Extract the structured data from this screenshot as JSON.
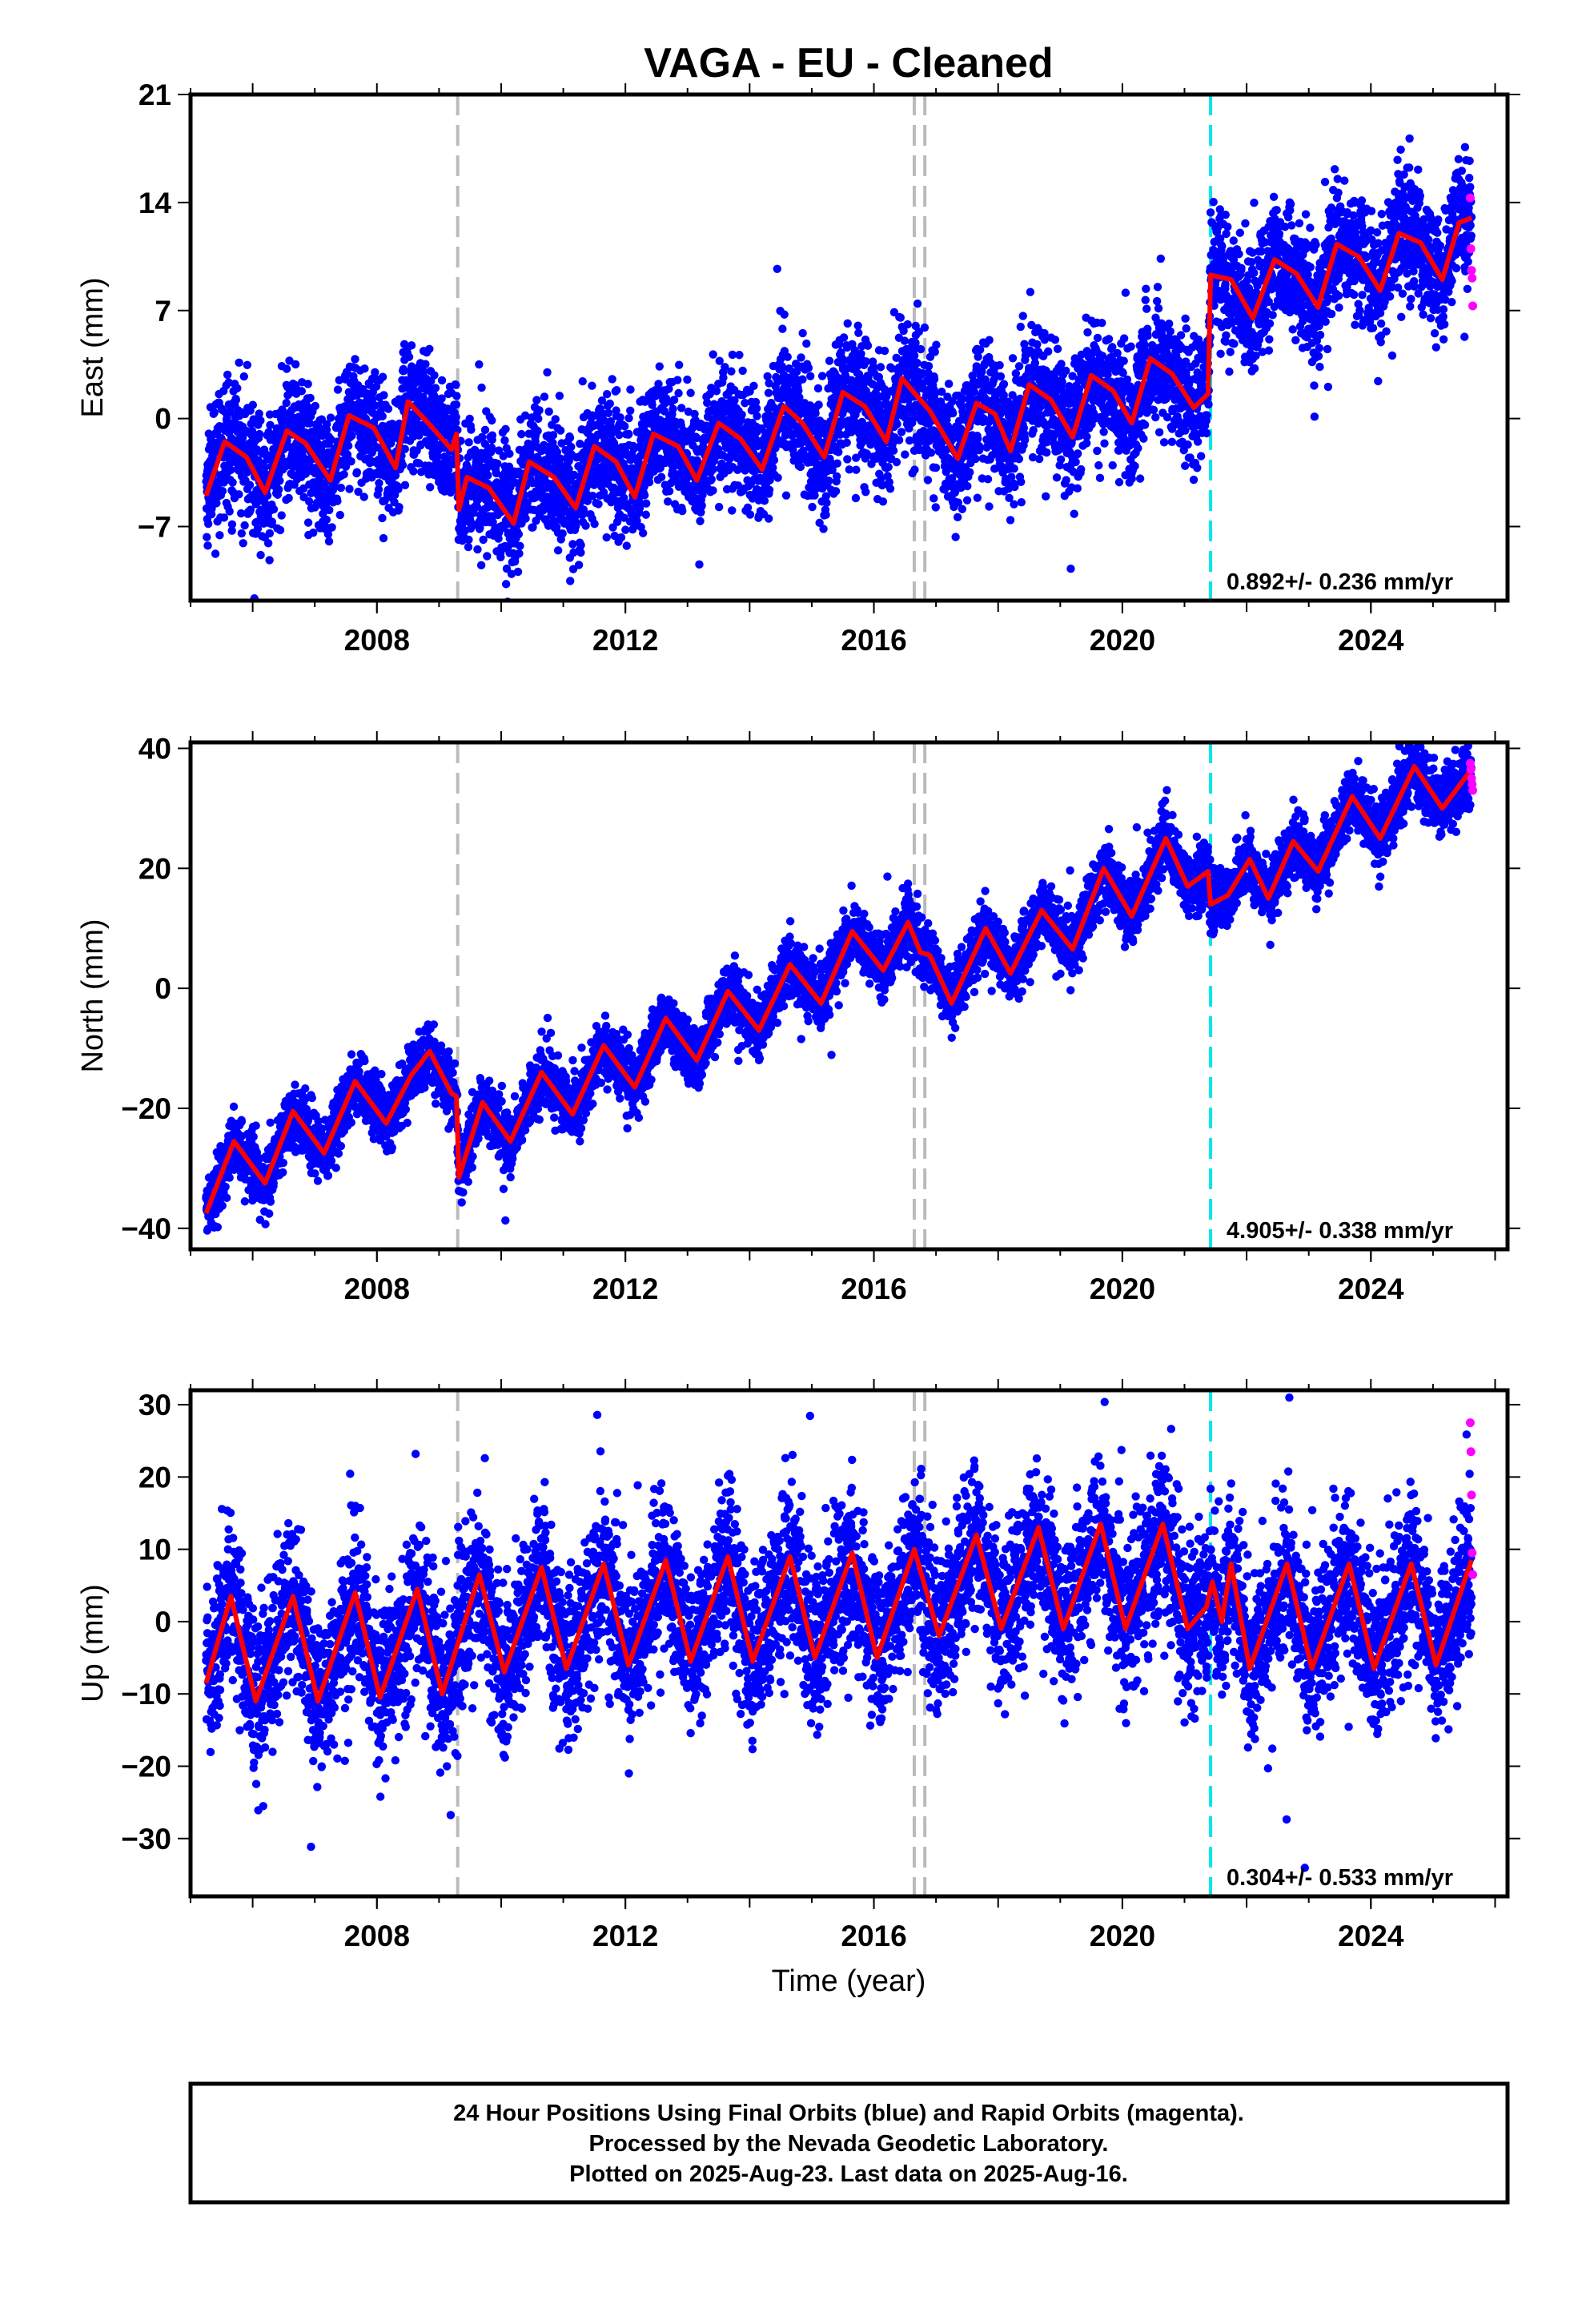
{
  "title": "VAGA  - EU - Cleaned",
  "x_axis_label": "Time (year)",
  "caption": {
    "line1": "24 Hour Positions Using Final Orbits (blue) and Rapid Orbits (magenta).",
    "line2": "Processed by the Nevada Geodetic Laboratory.",
    "line3": "Plotted on 2025-Aug-23. Last data on 2025-Aug-16."
  },
  "colors": {
    "final_orbits": "#0000ff",
    "rapid_orbits": "#ff00ff",
    "model": "#ff0000",
    "equipment_change": "#bbbbbb",
    "earthquake": "#00e5ee"
  },
  "chart_data": [
    {
      "type": "scatter",
      "component": "East",
      "ylabel": "East (mm)",
      "xlim": [
        2005.0,
        2026.2
      ],
      "ylim": [
        -11.8,
        21.0
      ],
      "x_ticks": [
        2008,
        2012,
        2016,
        2020,
        2024
      ],
      "y_ticks": [
        21,
        14,
        7,
        0,
        -7
      ],
      "y_tick_labels": [
        "21",
        "14",
        "7",
        "0",
        "−7"
      ],
      "rate_text": "0.892+/- 0.236 mm/yr",
      "equipment_change_lines": [
        2009.3,
        2016.65,
        2016.82
      ],
      "earthquake_lines": [
        2021.42
      ],
      "data_start": 2005.25,
      "data_end": 2025.62,
      "model_knots": [
        [
          2005.25,
          -5.0
        ],
        [
          2005.55,
          -1.5
        ],
        [
          2005.9,
          -2.5
        ],
        [
          2006.2,
          -4.8
        ],
        [
          2006.55,
          -0.8
        ],
        [
          2006.85,
          -1.6
        ],
        [
          2007.25,
          -4.0
        ],
        [
          2007.55,
          0.2
        ],
        [
          2007.95,
          -0.6
        ],
        [
          2008.3,
          -3.2
        ],
        [
          2008.5,
          1.1
        ],
        [
          2008.85,
          -0.4
        ],
        [
          2009.2,
          -2.0
        ],
        [
          2009.28,
          -1.0
        ],
        [
          2009.32,
          -5.9
        ],
        [
          2009.45,
          -3.8
        ],
        [
          2009.8,
          -4.5
        ],
        [
          2010.2,
          -6.8
        ],
        [
          2010.45,
          -2.8
        ],
        [
          2010.85,
          -3.8
        ],
        [
          2011.2,
          -5.8
        ],
        [
          2011.5,
          -1.8
        ],
        [
          2011.85,
          -2.8
        ],
        [
          2012.15,
          -5.1
        ],
        [
          2012.45,
          -1.0
        ],
        [
          2012.85,
          -1.8
        ],
        [
          2013.15,
          -4.0
        ],
        [
          2013.5,
          -0.3
        ],
        [
          2013.85,
          -1.3
        ],
        [
          2014.2,
          -3.3
        ],
        [
          2014.55,
          0.8
        ],
        [
          2014.85,
          -0.3
        ],
        [
          2015.2,
          -2.5
        ],
        [
          2015.5,
          1.7
        ],
        [
          2015.85,
          0.8
        ],
        [
          2016.2,
          -1.5
        ],
        [
          2016.45,
          2.6
        ],
        [
          2016.75,
          1.2
        ],
        [
          2016.9,
          0.5
        ],
        [
          2017.35,
          -2.6
        ],
        [
          2017.65,
          1.0
        ],
        [
          2017.95,
          0.3
        ],
        [
          2018.2,
          -2.1
        ],
        [
          2018.5,
          2.2
        ],
        [
          2018.85,
          1.2
        ],
        [
          2019.2,
          -1.2
        ],
        [
          2019.5,
          2.8
        ],
        [
          2019.85,
          1.8
        ],
        [
          2020.15,
          -0.3
        ],
        [
          2020.45,
          3.9
        ],
        [
          2020.8,
          2.9
        ],
        [
          2021.15,
          0.7
        ],
        [
          2021.38,
          1.6
        ],
        [
          2021.42,
          9.3
        ],
        [
          2021.75,
          9.0
        ],
        [
          2022.1,
          6.5
        ],
        [
          2022.45,
          10.3
        ],
        [
          2022.8,
          9.4
        ],
        [
          2023.15,
          7.2
        ],
        [
          2023.45,
          11.3
        ],
        [
          2023.8,
          10.5
        ],
        [
          2024.15,
          8.3
        ],
        [
          2024.45,
          12.0
        ],
        [
          2024.8,
          11.4
        ],
        [
          2025.15,
          9.0
        ],
        [
          2025.42,
          12.7
        ],
        [
          2025.62,
          13.0
        ]
      ],
      "noise_sd": 2.0,
      "rapid_points": [
        [
          2025.6,
          14.3
        ],
        [
          2025.61,
          11.0
        ],
        [
          2025.62,
          9.6
        ],
        [
          2025.63,
          9.1
        ],
        [
          2025.64,
          7.3
        ]
      ]
    },
    {
      "type": "scatter",
      "component": "North",
      "ylabel": "North (mm)",
      "xlim": [
        2005.0,
        2026.2
      ],
      "ylim": [
        -43.5,
        41.0
      ],
      "x_ticks": [
        2008,
        2012,
        2016,
        2020,
        2024
      ],
      "y_ticks": [
        40,
        20,
        0,
        -20,
        -40
      ],
      "y_tick_labels": [
        "40",
        "20",
        "0",
        "−20",
        "−40"
      ],
      "rate_text": "4.905+/- 0.338 mm/yr",
      "equipment_change_lines": [
        2009.3,
        2016.65,
        2016.82
      ],
      "earthquake_lines": [
        2021.42
      ],
      "data_start": 2005.25,
      "data_end": 2025.62,
      "model_knots": [
        [
          2005.25,
          -37.5
        ],
        [
          2005.7,
          -25.5
        ],
        [
          2006.2,
          -32.5
        ],
        [
          2006.65,
          -20.5
        ],
        [
          2007.15,
          -27.5
        ],
        [
          2007.65,
          -15.5
        ],
        [
          2008.15,
          -22.5
        ],
        [
          2008.55,
          -14.5
        ],
        [
          2008.85,
          -10.5
        ],
        [
          2009.2,
          -17.5
        ],
        [
          2009.28,
          -18.0
        ],
        [
          2009.32,
          -31.5
        ],
        [
          2009.7,
          -19.0
        ],
        [
          2010.15,
          -25.5
        ],
        [
          2010.65,
          -14.0
        ],
        [
          2011.15,
          -21.0
        ],
        [
          2011.65,
          -9.5
        ],
        [
          2012.15,
          -16.5
        ],
        [
          2012.65,
          -5.0
        ],
        [
          2013.15,
          -12.0
        ],
        [
          2013.65,
          -0.5
        ],
        [
          2014.15,
          -7.0
        ],
        [
          2014.65,
          4.0
        ],
        [
          2015.15,
          -2.5
        ],
        [
          2015.65,
          9.5
        ],
        [
          2016.15,
          3.0
        ],
        [
          2016.55,
          11.0
        ],
        [
          2016.75,
          6.0
        ],
        [
          2016.9,
          5.5
        ],
        [
          2017.25,
          -2.5
        ],
        [
          2017.8,
          10.0
        ],
        [
          2018.2,
          2.5
        ],
        [
          2018.7,
          13.0
        ],
        [
          2019.2,
          6.5
        ],
        [
          2019.7,
          20.0
        ],
        [
          2020.15,
          12.0
        ],
        [
          2020.7,
          25.0
        ],
        [
          2021.05,
          17.0
        ],
        [
          2021.38,
          19.5
        ],
        [
          2021.42,
          14.0
        ],
        [
          2021.7,
          15.5
        ],
        [
          2022.05,
          21.5
        ],
        [
          2022.35,
          15.0
        ],
        [
          2022.75,
          24.5
        ],
        [
          2023.15,
          19.5
        ],
        [
          2023.7,
          32.0
        ],
        [
          2024.15,
          25.0
        ],
        [
          2024.7,
          37.0
        ],
        [
          2025.15,
          30.0
        ],
        [
          2025.62,
          36.5
        ]
      ],
      "noise_sd": 2.5,
      "rapid_points": [
        [
          2025.6,
          37.5
        ],
        [
          2025.61,
          36.5
        ],
        [
          2025.62,
          35.0
        ],
        [
          2025.63,
          34.0
        ],
        [
          2025.64,
          33.0
        ]
      ]
    },
    {
      "type": "scatter",
      "component": "Up",
      "ylabel": "Up (mm)",
      "xlim": [
        2005.0,
        2026.2
      ],
      "ylim": [
        -38.0,
        32.0
      ],
      "x_ticks": [
        2008,
        2012,
        2016,
        2020,
        2024
      ],
      "y_ticks": [
        30,
        20,
        10,
        0,
        -10,
        -20,
        -30
      ],
      "y_tick_labels": [
        "30",
        "20",
        "10",
        "0",
        "−10",
        "−20",
        "−30"
      ],
      "rate_text": "0.304+/- 0.533 mm/yr",
      "equipment_change_lines": [
        2009.3,
        2016.65,
        2016.82
      ],
      "earthquake_lines": [
        2021.42
      ],
      "data_start": 2005.25,
      "data_end": 2025.62,
      "model_knots": [
        [
          2005.25,
          -8.5
        ],
        [
          2005.65,
          3.5
        ],
        [
          2006.05,
          -11.0
        ],
        [
          2006.65,
          3.5
        ],
        [
          2007.05,
          -11.0
        ],
        [
          2007.65,
          4.0
        ],
        [
          2008.05,
          -10.5
        ],
        [
          2008.65,
          4.5
        ],
        [
          2009.05,
          -10.0
        ],
        [
          2009.65,
          6.5
        ],
        [
          2010.05,
          -7.0
        ],
        [
          2010.65,
          7.5
        ],
        [
          2011.05,
          -6.5
        ],
        [
          2011.65,
          8.0
        ],
        [
          2012.05,
          -6.0
        ],
        [
          2012.65,
          8.5
        ],
        [
          2013.05,
          -5.5
        ],
        [
          2013.65,
          9.0
        ],
        [
          2014.05,
          -5.5
        ],
        [
          2014.65,
          9.0
        ],
        [
          2015.05,
          -5.0
        ],
        [
          2015.65,
          9.5
        ],
        [
          2016.05,
          -5.0
        ],
        [
          2016.65,
          10.0
        ],
        [
          2017.05,
          -2.0
        ],
        [
          2017.65,
          12.0
        ],
        [
          2018.05,
          -1.0
        ],
        [
          2018.65,
          13.0
        ],
        [
          2019.05,
          -1.0
        ],
        [
          2019.65,
          13.5
        ],
        [
          2020.05,
          -1.0
        ],
        [
          2020.65,
          13.5
        ],
        [
          2021.05,
          -1.0
        ],
        [
          2021.35,
          2.0
        ],
        [
          2021.45,
          5.5
        ],
        [
          2021.6,
          0.0
        ],
        [
          2021.75,
          8.0
        ],
        [
          2022.05,
          -6.5
        ],
        [
          2022.65,
          8.0
        ],
        [
          2023.05,
          -6.5
        ],
        [
          2023.65,
          8.0
        ],
        [
          2024.05,
          -6.5
        ],
        [
          2024.65,
          8.0
        ],
        [
          2025.05,
          -6.0
        ],
        [
          2025.62,
          8.5
        ]
      ],
      "noise_sd": 5.5,
      "rapid_points": [
        [
          2025.6,
          27.5
        ],
        [
          2025.61,
          23.5
        ],
        [
          2025.62,
          17.5
        ],
        [
          2025.63,
          9.5
        ],
        [
          2025.64,
          6.5
        ]
      ]
    }
  ]
}
